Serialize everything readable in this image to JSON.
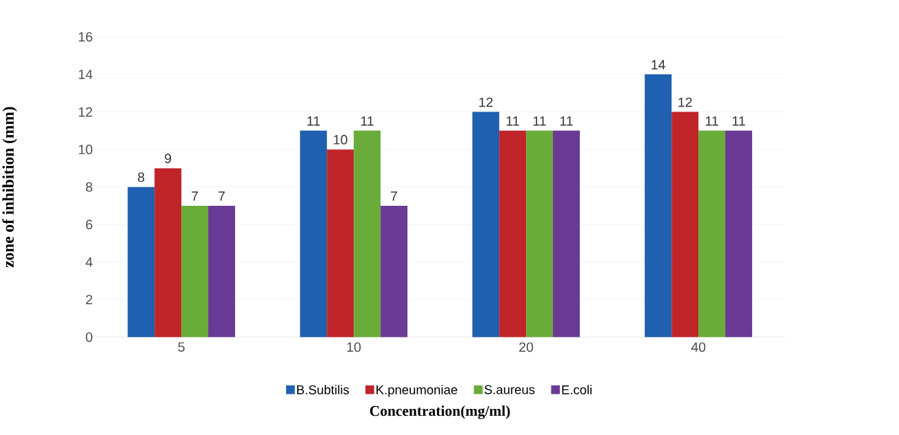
{
  "chart_data": {
    "type": "bar",
    "xlabel": "Concentration(mg/ml)",
    "ylabel": "zone of inhibition (mm)",
    "categories": [
      "5",
      "10",
      "20",
      "40"
    ],
    "series": [
      {
        "name": "B.Subtilis",
        "color": "#1f60b0",
        "values": [
          8,
          11,
          12,
          14
        ]
      },
      {
        "name": "K.pneumoniae",
        "color": "#c0252a",
        "values": [
          9,
          10,
          11,
          12
        ]
      },
      {
        "name": "S.aureus",
        "color": "#6aac3a",
        "values": [
          7,
          11,
          11,
          11
        ]
      },
      {
        "name": "E.coli",
        "color": "#6a3b96",
        "values": [
          7,
          7,
          11,
          11
        ]
      }
    ],
    "ylim": [
      0,
      16
    ],
    "yticks": [
      0,
      2,
      4,
      6,
      8,
      10,
      12,
      14,
      16
    ],
    "grid": "y",
    "legend": "bottom",
    "data_labels": true
  }
}
